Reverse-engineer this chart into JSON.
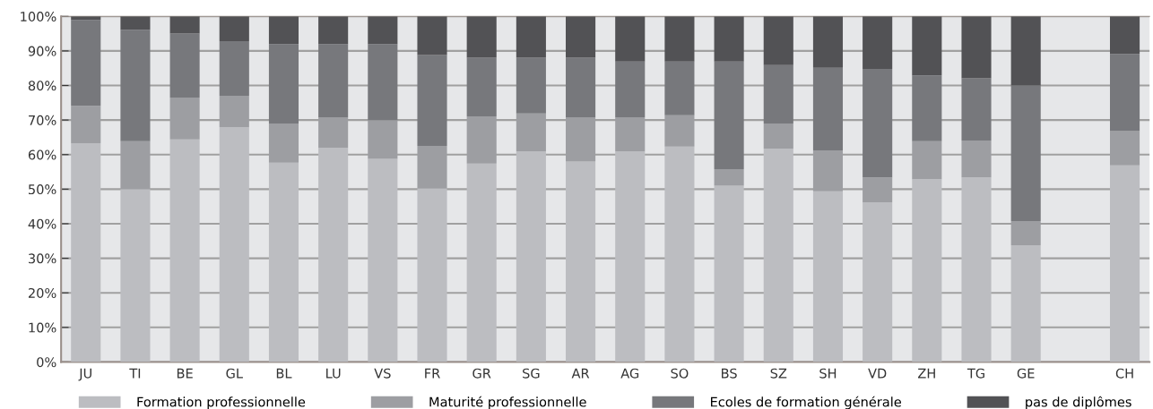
{
  "chart_data": {
    "type": "bar",
    "stacked": true,
    "categories": [
      "JU",
      "TI",
      "BE",
      "GL",
      "BL",
      "LU",
      "VS",
      "FR",
      "GR",
      "SG",
      "AR",
      "AG",
      "SO",
      "BS",
      "SZ",
      "SH",
      "VD",
      "ZH",
      "TG",
      "GE",
      null,
      "CH"
    ],
    "series": [
      {
        "name": "Formation professionnelle",
        "color": "#bcbdc1",
        "values": [
          63.3,
          50.0,
          64.4,
          67.9,
          57.7,
          62.0,
          58.8,
          50.2,
          57.4,
          60.9,
          58.0,
          60.9,
          62.3,
          51.0,
          61.7,
          49.4,
          46.2,
          52.9,
          53.4,
          33.8,
          null,
          56.9
        ]
      },
      {
        "name": "Maturité professionnelle",
        "color": "#9d9ea2",
        "values": [
          10.8,
          13.9,
          12.1,
          9.1,
          11.3,
          8.8,
          11.2,
          12.3,
          13.7,
          11.0,
          12.8,
          9.9,
          9.1,
          4.8,
          7.3,
          11.8,
          7.2,
          11.0,
          10.7,
          7.0,
          null,
          9.9
        ]
      },
      {
        "name": "Ecoles de formation générale",
        "color": "#77787c",
        "values": [
          24.9,
          32.2,
          18.5,
          15.8,
          23.0,
          21.2,
          22.0,
          26.3,
          16.9,
          16.1,
          17.2,
          16.1,
          15.5,
          31.1,
          16.9,
          23.9,
          31.4,
          19.0,
          18.0,
          39.2,
          null,
          22.3
        ]
      },
      {
        "name": "pas de diplômes",
        "color": "#525255",
        "values": [
          1.0,
          3.9,
          5.0,
          7.2,
          8.0,
          8.0,
          8.0,
          11.2,
          12.0,
          12.0,
          12.0,
          13.1,
          13.1,
          13.1,
          14.1,
          14.9,
          15.2,
          17.1,
          17.9,
          20.0,
          null,
          10.9
        ]
      }
    ],
    "ylim": [
      0,
      100
    ],
    "yticks": [
      {
        "value": 0,
        "label": "0%"
      },
      {
        "value": 10,
        "label": "10%"
      },
      {
        "value": 20,
        "label": "20%"
      },
      {
        "value": 30,
        "label": "30%"
      },
      {
        "value": 40,
        "label": "40%"
      },
      {
        "value": 50,
        "label": "50%"
      },
      {
        "value": 60,
        "label": "60%"
      },
      {
        "value": 70,
        "label": "70%"
      },
      {
        "value": 80,
        "label": "80%"
      },
      {
        "value": 90,
        "label": "90%"
      },
      {
        "value": 100,
        "label": "100%"
      }
    ],
    "grid": "y",
    "legend": "bottom"
  }
}
